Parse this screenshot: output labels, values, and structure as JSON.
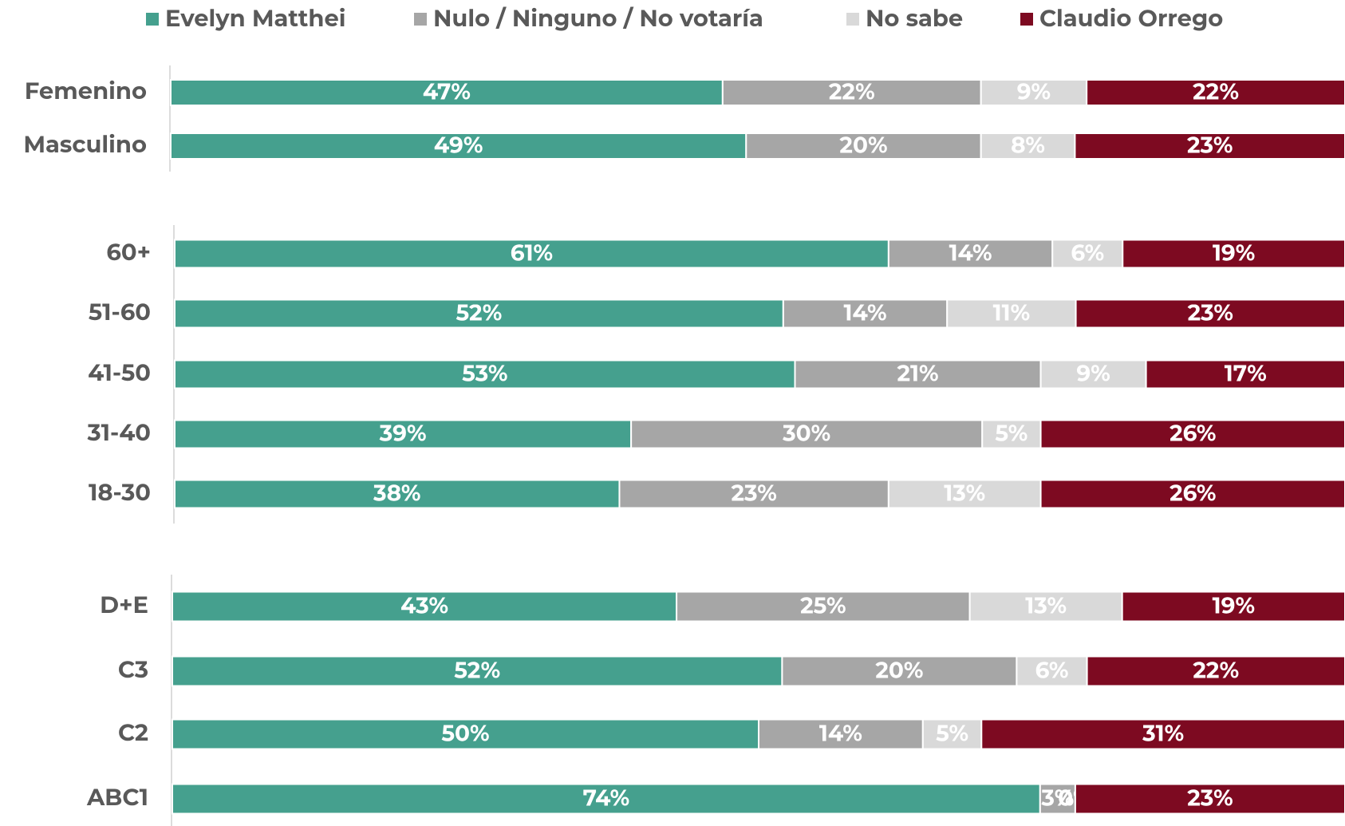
{
  "chart_data": {
    "type": "stacked_bar_horizontal",
    "categories": [
      [
        "Femenino",
        "Masculino"
      ],
      [
        "60+",
        "51-60",
        "41-50",
        "31-40",
        "18-30"
      ],
      [
        "D+E",
        "C3",
        "C2",
        "ABC1"
      ]
    ],
    "xlim": [
      0,
      100
    ],
    "series": [
      {
        "name": "Evelyn Matthei",
        "color": "#45a08e",
        "values": [
          [
            47,
            49
          ],
          [
            61,
            52,
            53,
            39,
            38
          ],
          [
            43,
            52,
            50,
            74
          ]
        ],
        "value_labels": [
          [
            "47%",
            "49%"
          ],
          [
            "61%",
            "52%",
            "53%",
            "39%",
            "38%"
          ],
          [
            "43%",
            "52%",
            "50%",
            "74%"
          ]
        ]
      },
      {
        "name": "Nulo / Ninguno / No votaría",
        "color": "#a6a6a6",
        "values": [
          [
            22,
            20
          ],
          [
            14,
            14,
            21,
            30,
            23
          ],
          [
            25,
            20,
            14,
            3
          ]
        ],
        "value_labels": [
          [
            "22%",
            "20%"
          ],
          [
            "14%",
            "14%",
            "21%",
            "30%",
            "23%"
          ],
          [
            "25%",
            "20%",
            "14%",
            "3%"
          ]
        ]
      },
      {
        "name": "No sabe",
        "color": "#d9d9d9",
        "values": [
          [
            9,
            8
          ],
          [
            6,
            11,
            9,
            5,
            13
          ],
          [
            13,
            6,
            5,
            0
          ]
        ],
        "value_labels": [
          [
            "9%",
            "8%"
          ],
          [
            "6%",
            "11%",
            "9%",
            "5%",
            "13%"
          ],
          [
            "13%",
            "6%",
            "5%",
            "0%"
          ]
        ]
      },
      {
        "name": "Claudio Orrego",
        "color": "#7d0a21",
        "values": [
          [
            22,
            23
          ],
          [
            19,
            23,
            17,
            26,
            26
          ],
          [
            19,
            22,
            31,
            23
          ]
        ],
        "value_labels": [
          [
            "22%",
            "23%"
          ],
          [
            "19%",
            "23%",
            "17%",
            "26%",
            "26%"
          ],
          [
            "19%",
            "22%",
            "31%",
            "23%"
          ]
        ]
      }
    ],
    "legend": "top"
  }
}
